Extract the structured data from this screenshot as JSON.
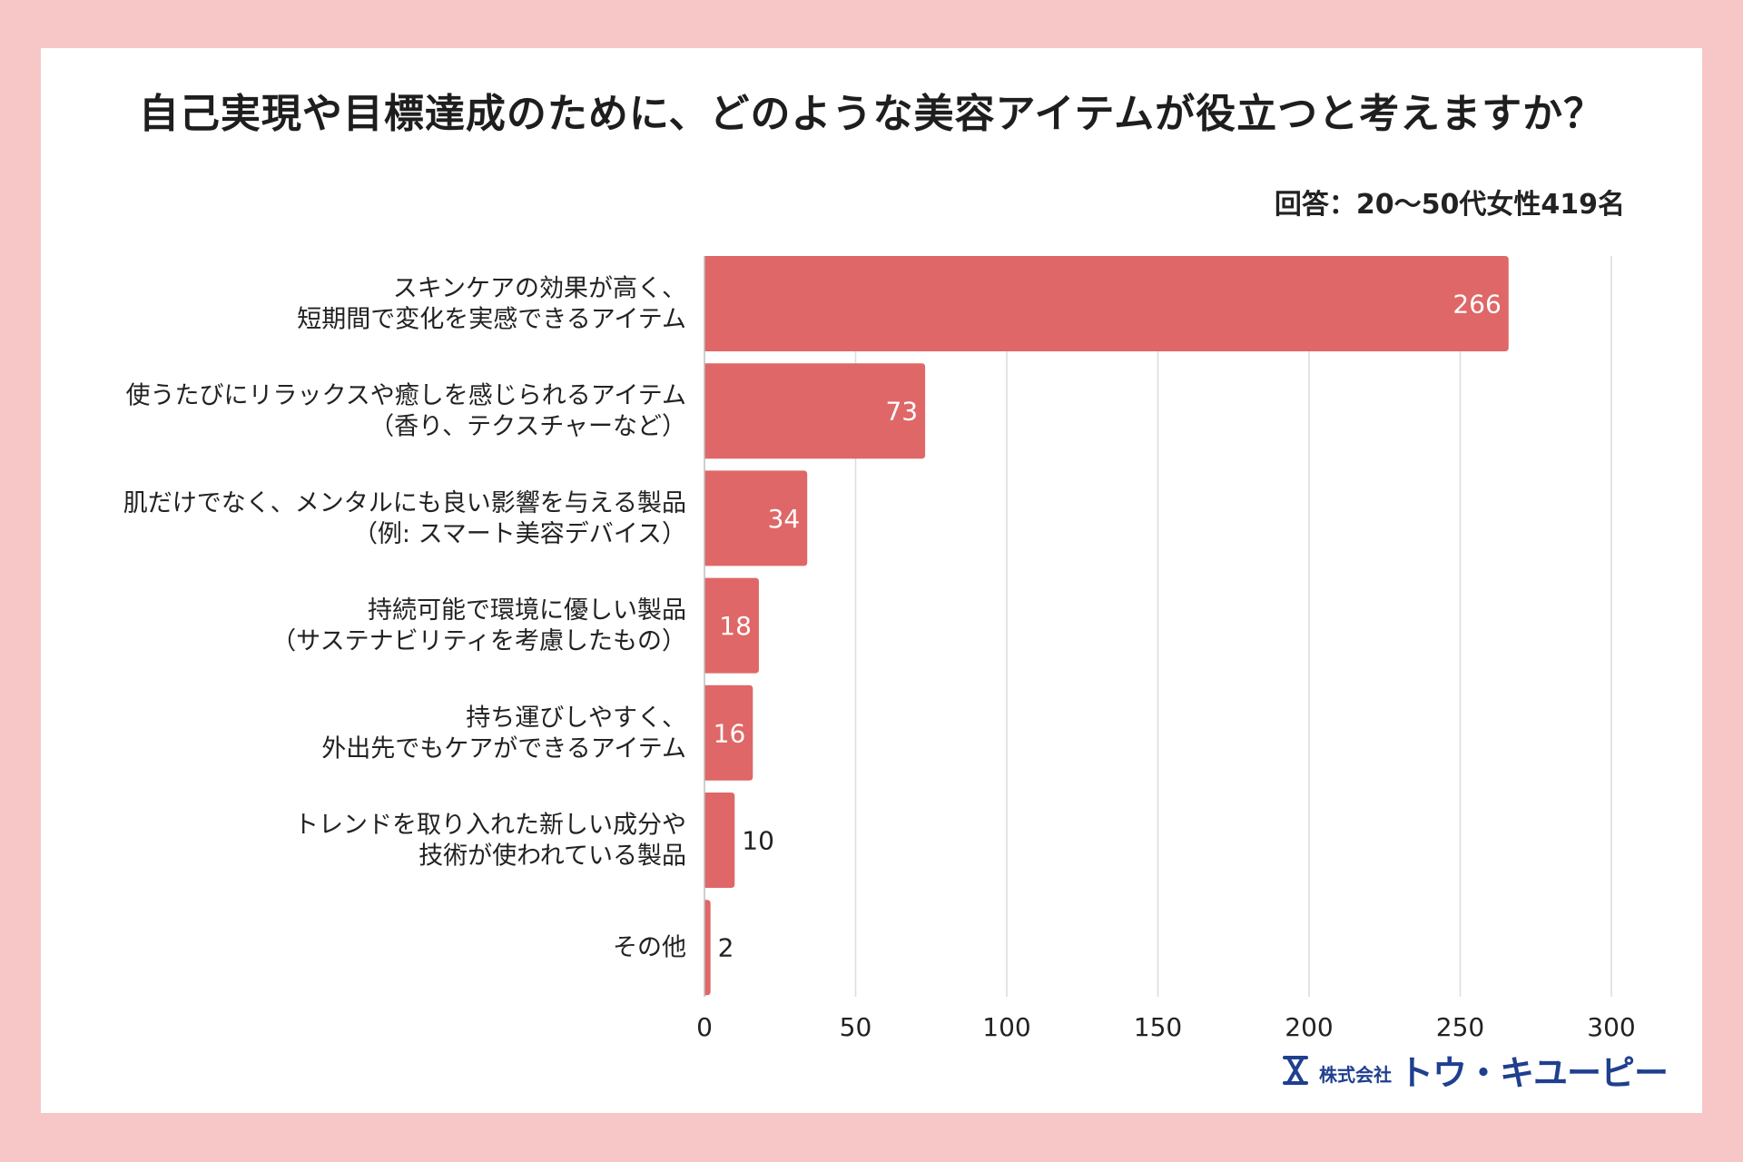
{
  "chart_data": {
    "type": "bar",
    "orientation": "horizontal",
    "title": "自己実現や目標達成のために、どのような美容アイテムが役立つと考えますか？",
    "subtitle": "回答：20〜50代女性419名",
    "categories": [
      [
        "スキンケアの効果が高く、",
        "短期間で変化を実感できるアイテム"
      ],
      [
        "使うたびにリラックスや癒しを感じられるアイテム",
        "（香り、テクスチャーなど）"
      ],
      [
        "肌だけでなく、メンタルにも良い影響を与える製品",
        "（例: スマート美容デバイス）"
      ],
      [
        "持続可能で環境に優しい製品",
        "（サステナビリティを考慮したもの）"
      ],
      [
        "持ち運びしやすく、",
        "外出先でもケアができるアイテム"
      ],
      [
        "トレンドを取り入れた新しい成分や",
        "技術が使われている製品"
      ],
      [
        "その他"
      ]
    ],
    "values": [
      266,
      73,
      34,
      18,
      16,
      10,
      2
    ],
    "xlim": [
      0,
      300
    ],
    "xticks": [
      0,
      50,
      100,
      150,
      200,
      250,
      300
    ],
    "grid": true,
    "bar_color": "#df6767"
  },
  "logo": {
    "small_text": "株式会社",
    "big_text": "トウ・キユーピー"
  }
}
